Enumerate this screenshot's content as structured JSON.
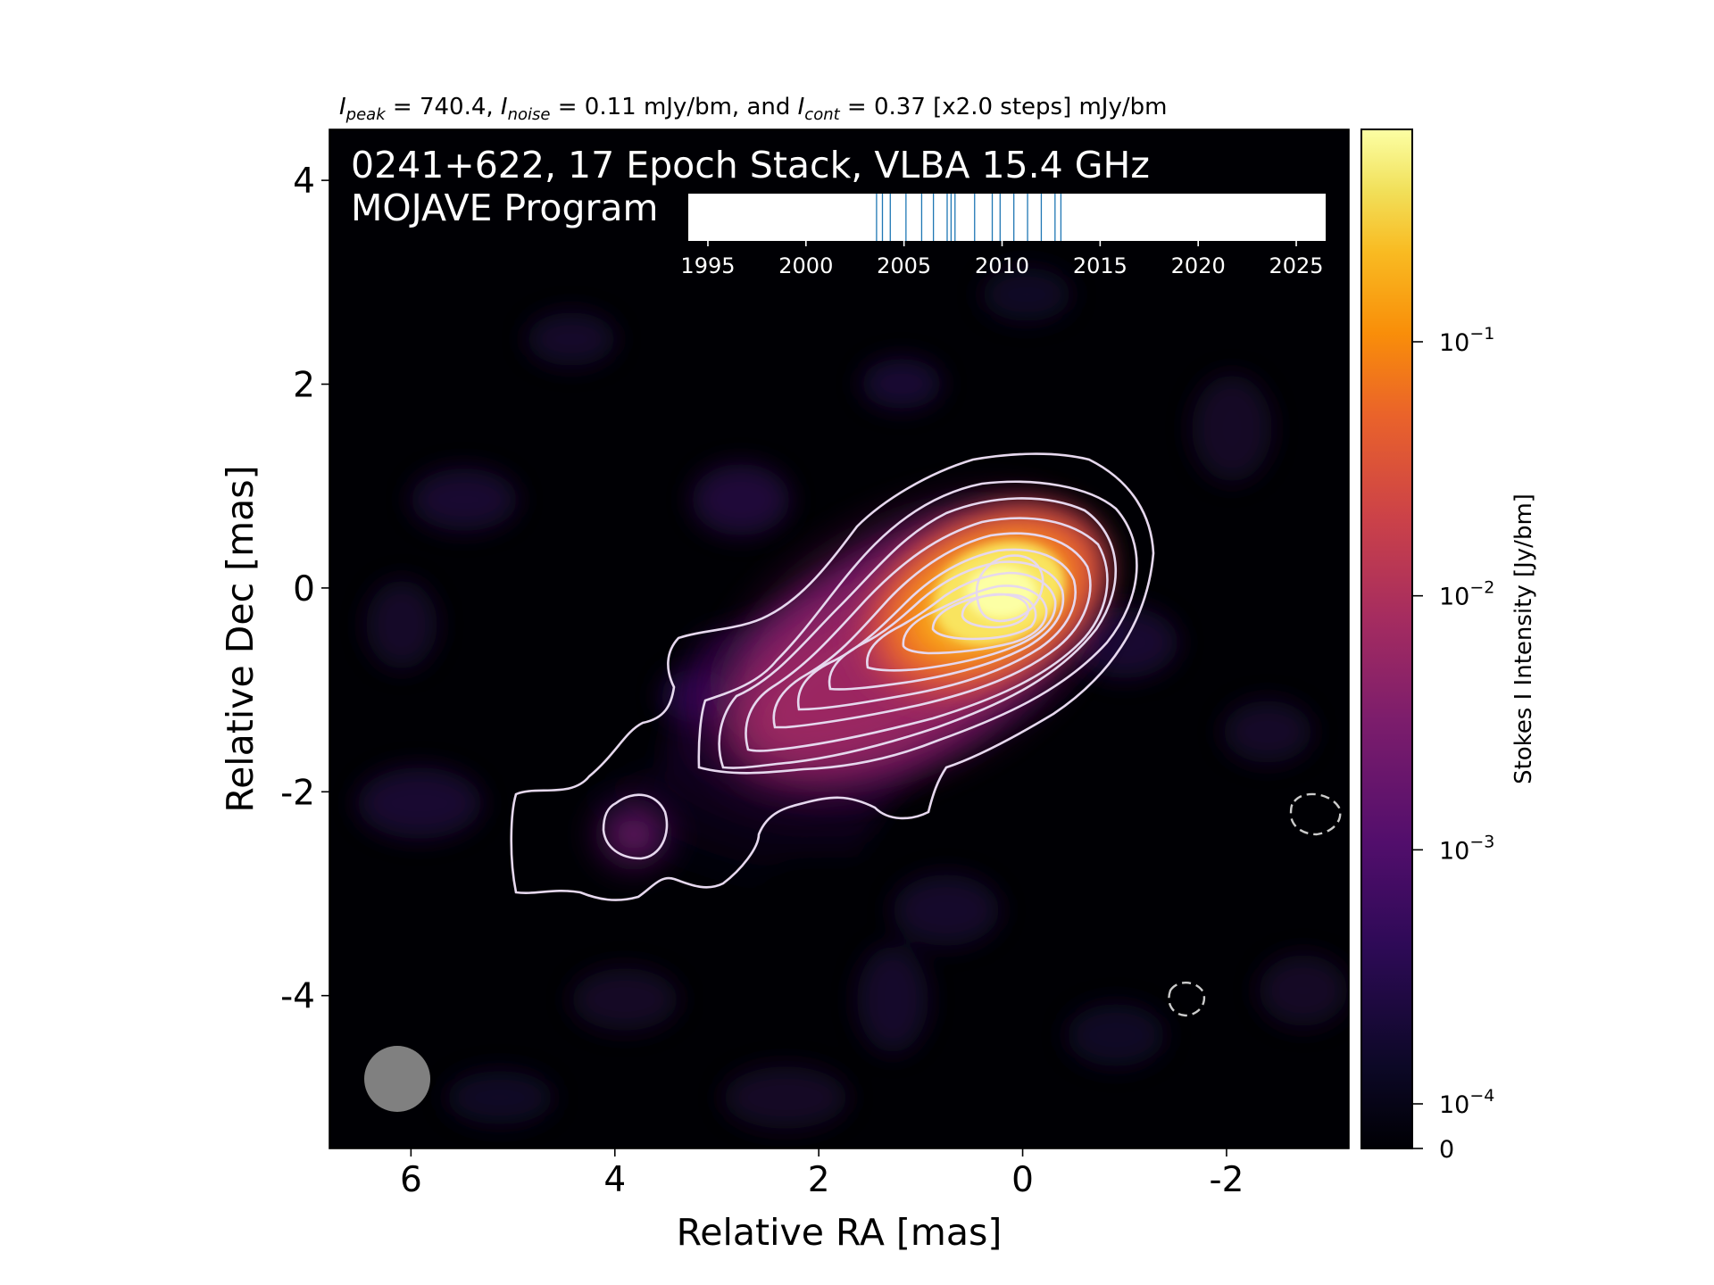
{
  "figure": {
    "header": {
      "peak_label": "I",
      "peak_sub": "peak",
      "peak_value": " = 740.4, ",
      "noise_label": "I",
      "noise_sub": "noise",
      "noise_value": " = 0.11 mJy/bm, and ",
      "cont_label": "I",
      "cont_sub": "cont",
      "cont_value": " = 0.37 [x2.0 steps] mJy/bm"
    },
    "title_line1": "0241+622, 17 Epoch Stack, VLBA 15.4 GHz",
    "title_line2": "MOJAVE Program",
    "xlabel": "Relative RA [mas]",
    "ylabel": "Relative Dec [mas]",
    "colorbar_label": "Stokes I Intensity [Jy/bm]",
    "colormap": "inferno",
    "contour_color": "#e6d8ee",
    "negative_contour_color": "#cccccc",
    "beam_color": "#808080"
  },
  "chart_data": {
    "type": "heatmap",
    "xaxis": {
      "label": "Relative RA [mas]",
      "lim": [
        6.8,
        -3.2
      ],
      "ticks": [
        6,
        4,
        2,
        0,
        -2
      ],
      "tick_labels": [
        "6",
        "4",
        "2",
        "0",
        "-2"
      ]
    },
    "yaxis": {
      "label": "Relative Dec [mas]",
      "lim": [
        -5.5,
        4.5
      ],
      "ticks": [
        4,
        2,
        0,
        -2,
        -4
      ],
      "tick_labels": [
        "4",
        "2",
        "0",
        "-2",
        "-4"
      ]
    },
    "colorbar": {
      "label": "Stokes I Intensity [Jy/bm]",
      "scale": "log",
      "ticks": [
        0.1,
        0.01,
        0.001,
        0.0001,
        0
      ],
      "tick_labels": [
        {
          "base": "10",
          "exp": "−1"
        },
        {
          "base": "10",
          "exp": "−2"
        },
        {
          "base": "10",
          "exp": "−3"
        },
        {
          "base": "10",
          "exp": "−4"
        },
        {
          "base": "0",
          "exp": ""
        }
      ],
      "range": [
        0,
        0.7404
      ]
    },
    "source": {
      "peak_Jy": 0.7404,
      "noise_mJy": 0.11,
      "contour_base_mJy": 0.37,
      "contour_step": 2.0,
      "core": {
        "ra": -0.2,
        "dec": 0.0
      },
      "jet_direction": "south-east",
      "blob": {
        "ra": 3.8,
        "dec": -2.4
      }
    },
    "negative_contours": [
      {
        "ra": -2.8,
        "dec": -2.25
      },
      {
        "ra": -1.6,
        "dec": -4.1
      }
    ],
    "beam": {
      "ra": 6.15,
      "dec": -4.9,
      "shape": "circle"
    },
    "epoch_timeline": {
      "xlim": [
        1994,
        2026.5
      ],
      "ticks": [
        1995,
        2000,
        2005,
        2010,
        2015,
        2020,
        2025
      ],
      "tick_labels": [
        "1995",
        "2000",
        "2005",
        "2010",
        "2015",
        "2020",
        "2025"
      ],
      "epochs": [
        2003.6,
        2003.9,
        2004.3,
        2005.1,
        2005.9,
        2006.5,
        2007.2,
        2007.4,
        2007.6,
        2008.6,
        2009.5,
        2009.9,
        2010.6,
        2011.3,
        2012.0,
        2012.7,
        2013.0
      ],
      "line_color": "#1f77b4"
    }
  }
}
